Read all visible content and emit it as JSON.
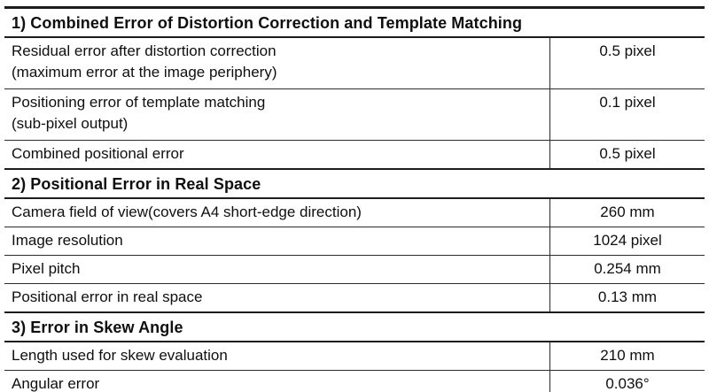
{
  "colors": {
    "background": "#ffffff",
    "border": "#1c1c1c",
    "text": "#0f0f0f"
  },
  "table": {
    "sections": [
      {
        "title": "1) Combined Error of Distortion Correction and Template Matching",
        "rows": [
          {
            "label": "Residual error after distortion correction",
            "label2": "(maximum error at the image periphery)",
            "value": "0.5 pixel"
          },
          {
            "label": "Positioning error of template matching",
            "label2": "(sub-pixel output)",
            "value": "0.1 pixel"
          },
          {
            "label": "Combined positional error",
            "value": "0.5 pixel"
          }
        ]
      },
      {
        "title": "2) Positional Error in Real Space",
        "rows": [
          {
            "label": "Camera field of view(covers A4 short-edge direction)",
            "value": "260 mm"
          },
          {
            "label": "Image resolution",
            "value": "1024 pixel"
          },
          {
            "label": "Pixel pitch",
            "value": "0.254 mm"
          },
          {
            "label": "Positional error in real space",
            "value": "0.13 mm"
          }
        ]
      },
      {
        "title": "3) Error in Skew Angle",
        "rows": [
          {
            "label": "Length used for skew evaluation",
            "value": "210 mm"
          },
          {
            "label": "Angular error",
            "value": "0.036°"
          }
        ]
      }
    ]
  }
}
